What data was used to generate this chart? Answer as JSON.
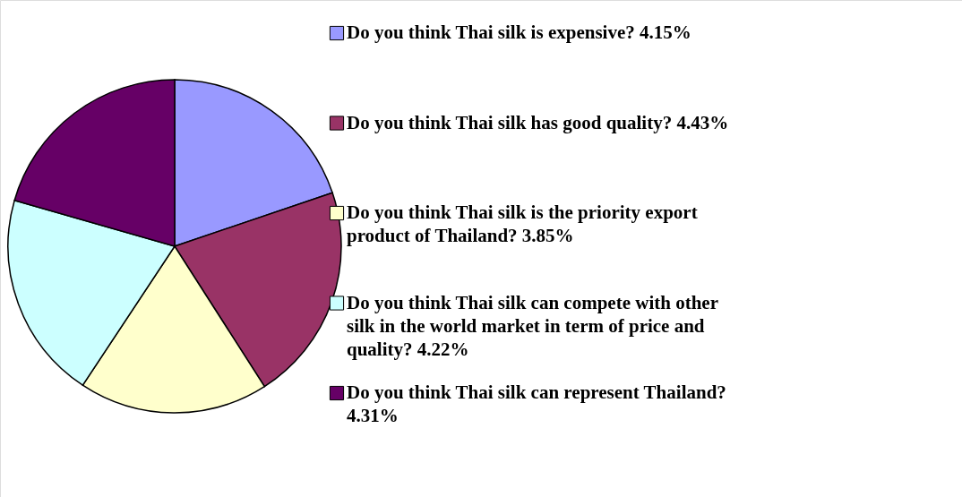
{
  "chart_data": {
    "type": "pie",
    "categories": [
      "Do you think Thai silk is expensive?",
      "Do you think Thai silk has good quality?",
      "Do you think Thai silk is the priority export product of Thailand?",
      "Do you think Thai silk can compete with other silk in the world market in term of price and quality?",
      "Do you think Thai silk can represent Thailand?"
    ],
    "values": [
      4.15,
      4.43,
      3.85,
      4.22,
      4.31
    ],
    "value_labels": [
      "4.15%",
      "4.43%",
      "3.85%",
      "4.22%",
      "4.31%"
    ],
    "colors": [
      "#9999ff",
      "#993366",
      "#ffffcc",
      "#ccffff",
      "#660066"
    ],
    "legend": "right"
  }
}
